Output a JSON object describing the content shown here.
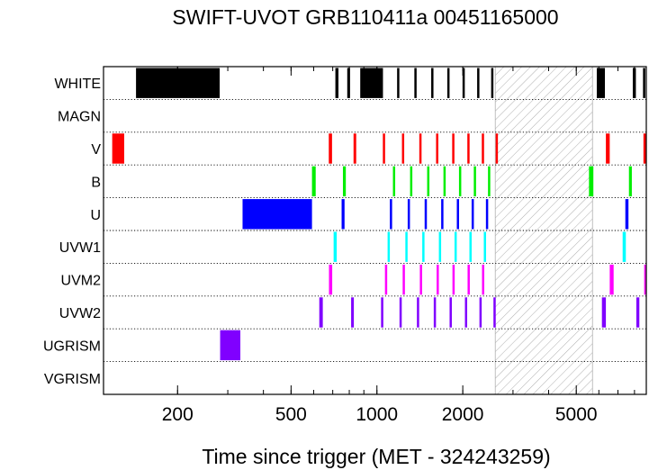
{
  "chart_data": {
    "type": "timeline",
    "title": "SWIFT-UVOT GRB110411a 00451165000",
    "xlabel": "Time since trigger (MET - 324243259)",
    "xscale": "log",
    "xlim": [
      110,
      8800
    ],
    "xticks": [
      200,
      500,
      1000,
      2000,
      5000
    ],
    "xtick_labels": [
      "200",
      "500",
      "1000",
      "2000",
      "5000"
    ],
    "categories": [
      "WHITE",
      "MAGN",
      "V",
      "B",
      "U",
      "UVW1",
      "UVM2",
      "UVW2",
      "UGRISM",
      "VGRISM"
    ],
    "colors": {
      "WHITE": "#000000",
      "MAGN": "#000000",
      "V": "#ff0000",
      "B": "#00ee00",
      "U": "#0000ff",
      "UVW1": "#00ffff",
      "UVM2": "#ff00ff",
      "UVW2": "#8000ff",
      "UGRISM": "#8000ff",
      "VGRISM": "#000000"
    },
    "gap": {
      "start": 2600,
      "end": 5700,
      "pattern": "hatched"
    },
    "exposures": {
      "WHITE": [
        [
          143,
          281
        ],
        [
          715,
          733
        ],
        [
          787,
          805
        ],
        [
          874,
          1050
        ],
        [
          1177,
          1195
        ],
        [
          1353,
          1371
        ],
        [
          1550,
          1568
        ],
        [
          1765,
          1783
        ],
        [
          1996,
          2014
        ],
        [
          2246,
          2264
        ],
        [
          2515,
          2533
        ],
        [
          5900,
          6300
        ],
        [
          7890,
          8090
        ],
        [
          8570,
          8700
        ]
      ],
      "MAGN": [],
      "V": [
        [
          118,
          130
        ],
        [
          678,
          696
        ],
        [
          828,
          846
        ],
        [
          1049,
          1067
        ],
        [
          1224,
          1242
        ],
        [
          1408,
          1426
        ],
        [
          1612,
          1630
        ],
        [
          1836,
          1854
        ],
        [
          2075,
          2093
        ],
        [
          2332,
          2350
        ],
        [
          2608,
          2626
        ],
        [
          6350,
          6550
        ],
        [
          8600,
          8770
        ]
      ],
      "B": [
        [
          592,
          610
        ],
        [
          760,
          778
        ],
        [
          1138,
          1156
        ],
        [
          1307,
          1325
        ],
        [
          1500,
          1518
        ],
        [
          1711,
          1729
        ],
        [
          1940,
          1958
        ],
        [
          2186,
          2204
        ],
        [
          2452,
          2470
        ],
        [
          5540,
          5740
        ],
        [
          7650,
          7830
        ]
      ],
      "U": [
        [
          338,
          592
        ],
        [
          752,
          770
        ],
        [
          1110,
          1128
        ],
        [
          1282,
          1300
        ],
        [
          1470,
          1488
        ],
        [
          1680,
          1698
        ],
        [
          1906,
          1924
        ],
        [
          2148,
          2166
        ],
        [
          2411,
          2429
        ],
        [
          7430,
          7620
        ]
      ],
      "UVW1": [
        [
          705,
          723
        ],
        [
          1090,
          1108
        ],
        [
          1258,
          1276
        ],
        [
          1442,
          1460
        ],
        [
          1649,
          1667
        ],
        [
          1871,
          1889
        ],
        [
          2110,
          2128
        ],
        [
          2370,
          2388
        ],
        [
          7270,
          7460
        ]
      ],
      "UVM2": [
        [
          679,
          697
        ],
        [
          1067,
          1085
        ],
        [
          1231,
          1249
        ],
        [
          1414,
          1432
        ],
        [
          1619,
          1637
        ],
        [
          1840,
          1858
        ],
        [
          2079,
          2097
        ],
        [
          2336,
          2354
        ],
        [
          6550,
          6760
        ],
        [
          8650,
          8800
        ]
      ],
      "UVW2": [
        [
          628,
          646
        ],
        [
          812,
          830
        ],
        [
          1034,
          1052
        ],
        [
          1200,
          1218
        ],
        [
          1381,
          1399
        ],
        [
          1582,
          1600
        ],
        [
          1798,
          1816
        ],
        [
          2035,
          2053
        ],
        [
          2288,
          2306
        ],
        [
          2562,
          2580
        ],
        [
          6150,
          6350
        ],
        [
          8120,
          8320
        ]
      ],
      "UGRISM": [
        [
          282,
          332
        ]
      ],
      "VGRISM": []
    }
  }
}
